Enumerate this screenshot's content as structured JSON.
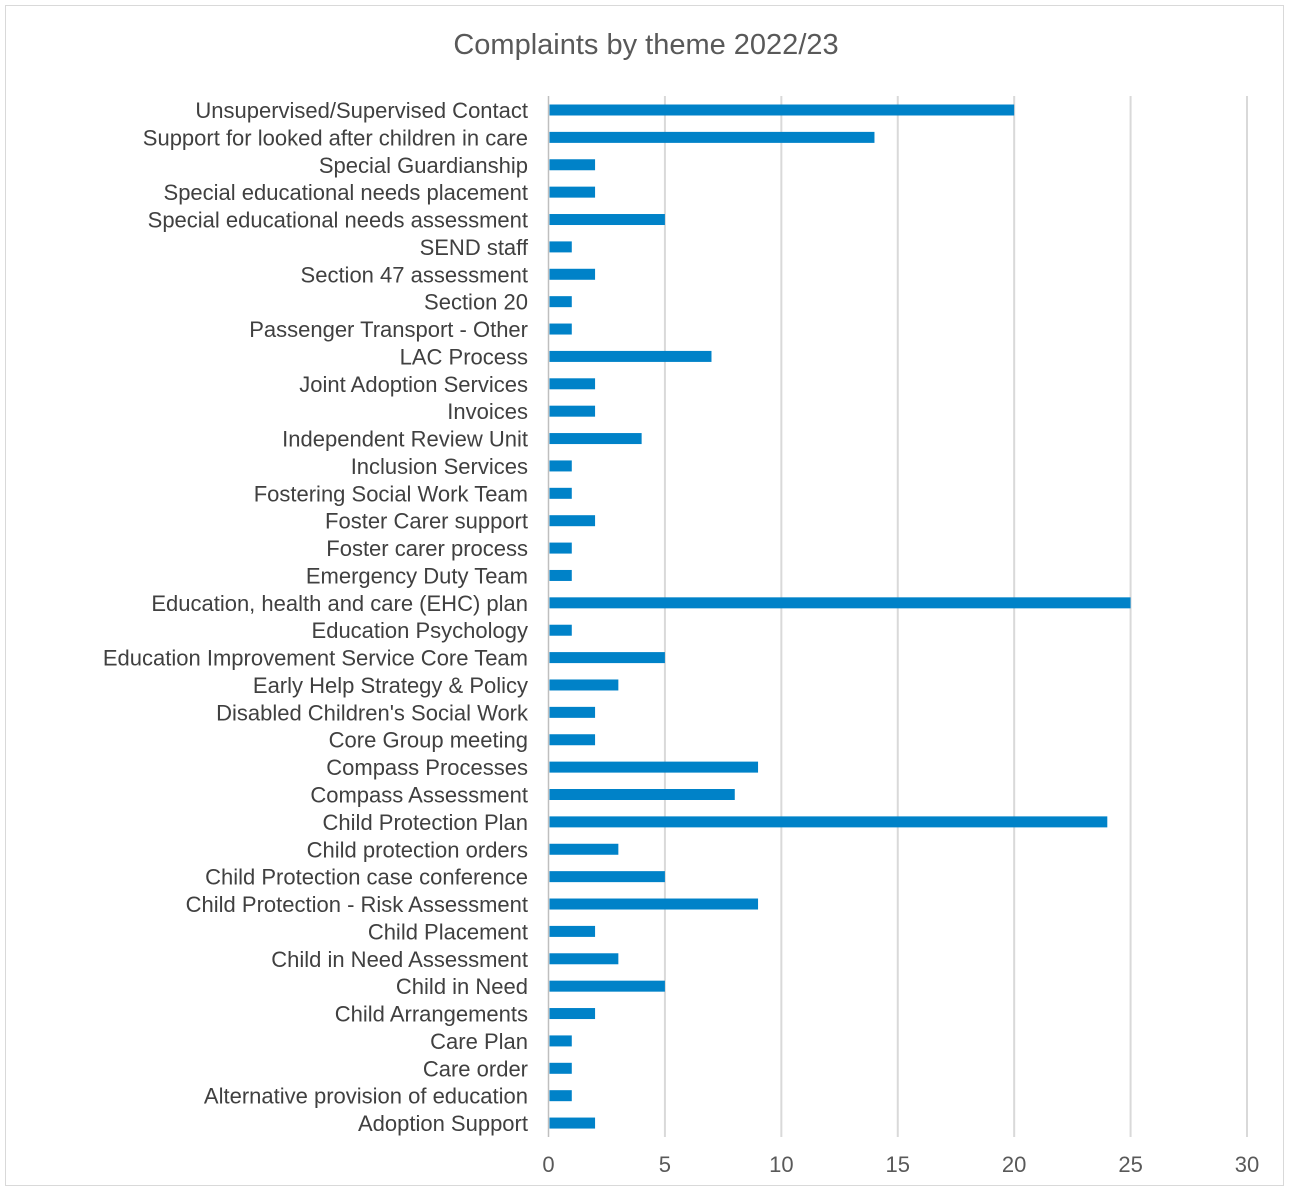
{
  "chart_data": {
    "type": "bar",
    "orientation": "horizontal",
    "title": "Complaints by theme 2022/23",
    "xlabel": "",
    "ylabel": "",
    "xlim": [
      0,
      30
    ],
    "x_ticks": [
      0,
      5,
      10,
      15,
      20,
      25,
      30
    ],
    "grid": "vertical",
    "legend": "none",
    "bar_color": "#0082c8",
    "categories": [
      "Unsupervised/Supervised Contact",
      "Support for looked after children in care",
      "Special Guardianship",
      "Special educational needs placement",
      "Special educational needs assessment",
      "SEND staff",
      "Section 47 assessment",
      "Section 20",
      "Passenger Transport - Other",
      "LAC Process",
      "Joint Adoption Services",
      "Invoices",
      "Independent Review Unit",
      "Inclusion Services",
      "Fostering Social Work Team",
      "Foster Carer support",
      "Foster carer process",
      "Emergency Duty Team",
      "Education, health and care (EHC) plan",
      "Education Psychology",
      "Education Improvement Service Core Team",
      "Early Help Strategy & Policy",
      "Disabled Children's Social Work",
      "Core Group meeting",
      "Compass Processes",
      "Compass Assessment",
      "Child Protection Plan",
      "Child protection orders",
      "Child Protection case conference",
      "Child Protection - Risk Assessment",
      "Child Placement",
      "Child in Need Assessment",
      "Child in Need",
      "Child Arrangements",
      "Care Plan",
      "Care order",
      "Alternative provision of education",
      "Adoption Support"
    ],
    "values": [
      20,
      14,
      2,
      2,
      5,
      1,
      2,
      1,
      1,
      7,
      2,
      2,
      4,
      1,
      1,
      2,
      1,
      1,
      25,
      1,
      5,
      3,
      2,
      2,
      9,
      8,
      24,
      3,
      5,
      9,
      2,
      3,
      5,
      2,
      1,
      1,
      1,
      2
    ]
  }
}
